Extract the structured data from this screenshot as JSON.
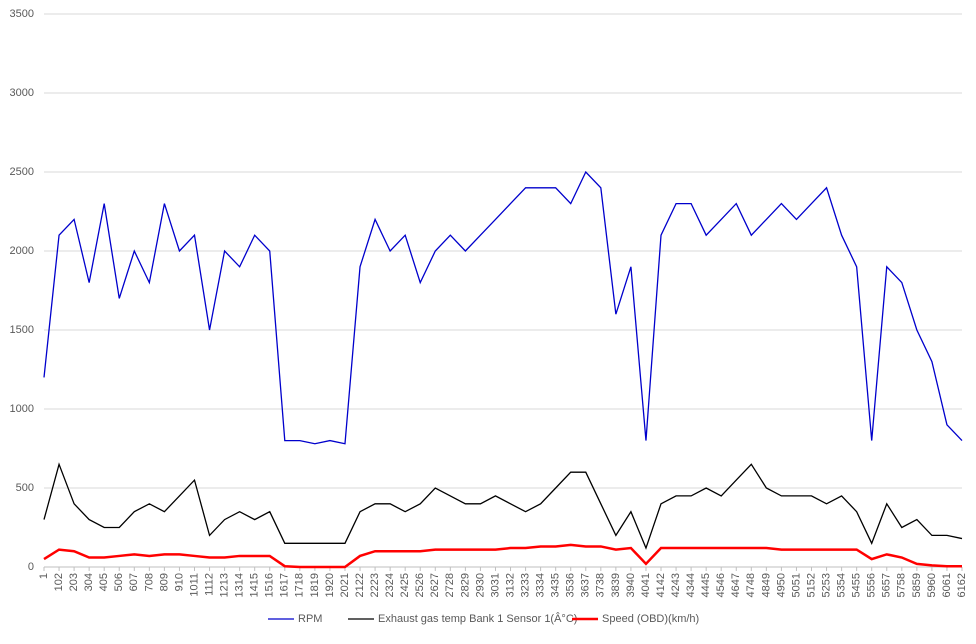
{
  "chart_data": {
    "type": "line",
    "categories": [
      "1",
      "102",
      "203",
      "304",
      "405",
      "506",
      "607",
      "708",
      "809",
      "910",
      "1011",
      "1112",
      "1213",
      "1314",
      "1415",
      "1516",
      "1617",
      "1718",
      "1819",
      "1920",
      "2021",
      "2122",
      "2223",
      "2324",
      "2425",
      "2526",
      "2627",
      "2728",
      "2829",
      "2930",
      "3031",
      "3132",
      "3233",
      "3334",
      "3435",
      "3536",
      "3637",
      "3738",
      "3839",
      "3940",
      "4041",
      "4142",
      "4243",
      "4344",
      "4445",
      "4546",
      "4647",
      "4748",
      "4849",
      "4950",
      "5051",
      "5152",
      "5253",
      "5354",
      "5455",
      "5556",
      "5657",
      "5758",
      "5859",
      "5960",
      "6061",
      "6162"
    ],
    "series": [
      {
        "name": "RPM",
        "color": "#0000cc",
        "width": 1.3,
        "values": [
          1200,
          2100,
          2200,
          1800,
          2300,
          1700,
          2000,
          1800,
          2300,
          2000,
          2100,
          1500,
          2000,
          1900,
          2100,
          2000,
          800,
          800,
          780,
          800,
          780,
          1900,
          2200,
          2000,
          2100,
          1800,
          2000,
          2100,
          2000,
          2100,
          2200,
          2300,
          2400,
          2400,
          2400,
          2300,
          2500,
          2400,
          1600,
          1900,
          800,
          2100,
          2300,
          2300,
          2100,
          2200,
          2300,
          2100,
          2200,
          2300,
          2200,
          2300,
          2400,
          2100,
          1900,
          800,
          1900,
          1800,
          1500,
          1300,
          900,
          800
        ]
      },
      {
        "name": "Exhaust gas temp Bank 1 Sensor 1(Â°C)",
        "color": "#000000",
        "width": 1.3,
        "values": [
          300,
          650,
          400,
          300,
          250,
          250,
          350,
          400,
          350,
          450,
          550,
          200,
          300,
          350,
          300,
          350,
          150,
          150,
          150,
          150,
          150,
          350,
          400,
          400,
          350,
          400,
          500,
          450,
          400,
          400,
          450,
          400,
          350,
          400,
          500,
          600,
          600,
          400,
          200,
          350,
          120,
          400,
          450,
          450,
          500,
          450,
          550,
          650,
          500,
          450,
          450,
          450,
          400,
          450,
          350,
          150,
          400,
          250,
          300,
          200,
          200,
          180
        ]
      },
      {
        "name": "Speed (OBD)(km/h)",
        "color": "#ff0000",
        "width": 2.5,
        "values": [
          50,
          110,
          100,
          60,
          60,
          70,
          80,
          70,
          80,
          80,
          70,
          60,
          60,
          70,
          70,
          70,
          5,
          0,
          0,
          0,
          0,
          70,
          100,
          100,
          100,
          100,
          110,
          110,
          110,
          110,
          110,
          120,
          120,
          130,
          130,
          140,
          130,
          130,
          110,
          120,
          20,
          120,
          120,
          120,
          120,
          120,
          120,
          120,
          120,
          110,
          110,
          110,
          110,
          110,
          110,
          50,
          80,
          60,
          20,
          10,
          5,
          5
        ]
      }
    ],
    "ylim": [
      0,
      3500
    ],
    "yticks": [
      0,
      500,
      1000,
      1500,
      2000,
      2500,
      3000,
      3500
    ],
    "grid": true,
    "legend": "bottom"
  }
}
